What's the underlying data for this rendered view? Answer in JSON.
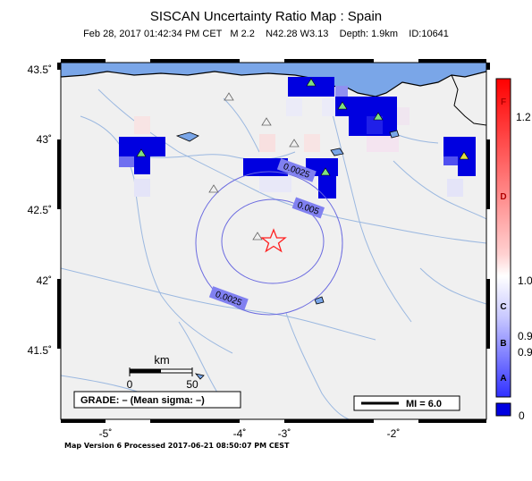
{
  "header": {
    "title": "SISCAN Uncertainty Ratio Map : Spain",
    "subtitle": "Feb 28, 2017 01:42:34 PM CET   M 2.2    N42.28 W3.13    Depth: 1.9km    ID:10641"
  },
  "axes": {
    "lat_ticks": [
      "43.5˚",
      "43˚",
      "42.5˚",
      "42˚",
      "41.5˚"
    ],
    "lon_ticks": [
      "-5˚",
      "-4˚",
      "-3˚",
      "-2˚"
    ]
  },
  "contours": {
    "inner_label": "0.005",
    "outer_label_top": "0.0025",
    "outer_label_bottom": "0.0025"
  },
  "scalebar": {
    "unit": "km",
    "start": "0",
    "end": "50"
  },
  "grade_box": {
    "text": "GRADE: – (Mean sigma: –)"
  },
  "mi_legend": {
    "text": "MI = 6.0"
  },
  "colorbar": {
    "grade_letters": [
      "F",
      "D",
      "C",
      "B",
      "A"
    ],
    "value_labels": [
      "1.2",
      "1.0",
      "0.9",
      "0.9",
      "0"
    ]
  },
  "footer": {
    "text": "Map Version 6 Processed 2017-06-21 08:50:07 PM CEST"
  },
  "colors": {
    "sea": "#7aa6e8",
    "land": "#f0f0f0",
    "rivers": "#9bb8e0",
    "contour": "#6a6ae0",
    "cell_high": "#0000e0",
    "epicenter": "#ff2020"
  }
}
